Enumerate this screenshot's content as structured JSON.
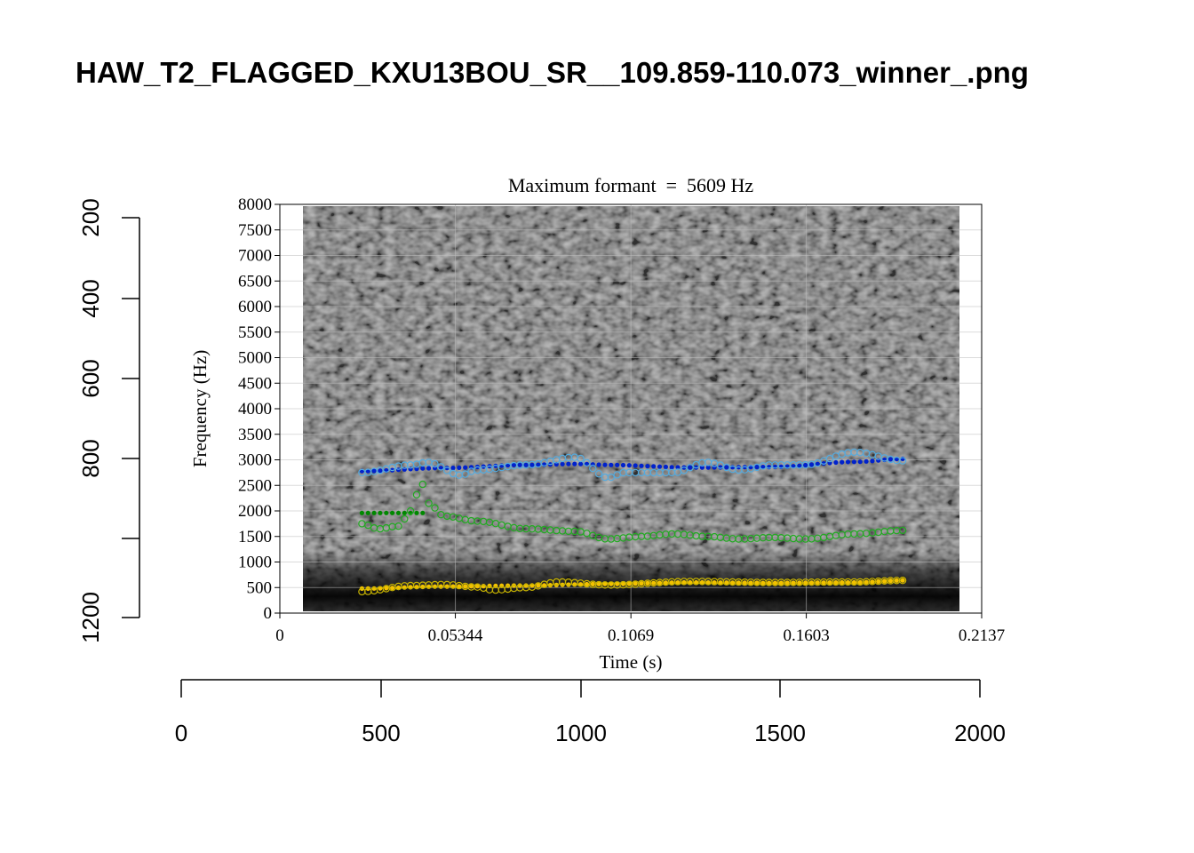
{
  "page": {
    "title": "HAW_T2_FLAGGED_KXU13BOU_SR__109.859-110.073_winner_.png"
  },
  "outer_axes": {
    "x_ticks": [
      "0",
      "500",
      "1000",
      "1500",
      "2000"
    ],
    "y_ticks": [
      "200",
      "400",
      "600",
      "800",
      "1200"
    ]
  },
  "chart_data": {
    "type": "scatter",
    "title": "Maximum formant  =  5609 Hz",
    "xlabel": "Time (s)",
    "ylabel": "Frequency (Hz)",
    "xlim": [
      0,
      0.2137
    ],
    "ylim": [
      0,
      8000
    ],
    "x_tick_labels": [
      "0",
      "0.05344",
      "0.1069",
      "0.1603",
      "0.2137"
    ],
    "y_tick_labels": [
      "0",
      "500",
      "1000",
      "1500",
      "2000",
      "2500",
      "3000",
      "3500",
      "4000",
      "4500",
      "5000",
      "5500",
      "6000",
      "6500",
      "7000",
      "7500",
      "8000"
    ],
    "grid": true,
    "background": "grayscale spectrogram",
    "series": [
      {
        "color": "#f2c200",
        "style": "smoothed-filled",
        "x": [
          0.025,
          0.05,
          0.075,
          0.1,
          0.125,
          0.15,
          0.175,
          0.19
        ],
        "y": [
          480,
          520,
          540,
          570,
          600,
          590,
          600,
          640
        ]
      },
      {
        "color": "#c8b400",
        "style": "raw-open",
        "x": [
          0.025,
          0.04,
          0.05,
          0.06,
          0.065,
          0.075,
          0.085,
          0.1,
          0.125,
          0.15,
          0.175,
          0.19
        ],
        "y": [
          420,
          540,
          560,
          510,
          450,
          500,
          610,
          550,
          620,
          600,
          610,
          640
        ]
      },
      {
        "color": "#008800",
        "style": "smoothed-filled",
        "x": [
          0.025,
          0.04,
          0.045
        ],
        "y": [
          1960,
          1960,
          1960
        ]
      },
      {
        "color": "#22aa22",
        "style": "raw-open",
        "x": [
          0.025,
          0.03,
          0.036,
          0.04,
          0.043,
          0.046,
          0.05,
          0.06,
          0.075,
          0.09,
          0.1,
          0.11,
          0.12,
          0.13,
          0.14,
          0.15,
          0.16,
          0.175,
          0.19
        ],
        "y": [
          1750,
          1650,
          1700,
          2000,
          2550,
          2100,
          1900,
          1800,
          1650,
          1600,
          1450,
          1500,
          1550,
          1500,
          1450,
          1480,
          1450,
          1550,
          1620
        ]
      },
      {
        "color": "#0022cc",
        "style": "smoothed-filled",
        "x": [
          0.025,
          0.05,
          0.075,
          0.09,
          0.1,
          0.125,
          0.15,
          0.175,
          0.19
        ],
        "y": [
          2780,
          2840,
          2900,
          2920,
          2900,
          2850,
          2860,
          2960,
          3020
        ]
      },
      {
        "color": "#55aadd",
        "style": "raw-open",
        "x": [
          0.025,
          0.04,
          0.045,
          0.055,
          0.06,
          0.075,
          0.09,
          0.1,
          0.105,
          0.12,
          0.13,
          0.14,
          0.15,
          0.16,
          0.175,
          0.19
        ],
        "y": [
          2750,
          2900,
          2950,
          2700,
          2800,
          2900,
          3050,
          2650,
          2750,
          2750,
          2950,
          2800,
          2900,
          2900,
          3150,
          2980
        ]
      }
    ]
  }
}
